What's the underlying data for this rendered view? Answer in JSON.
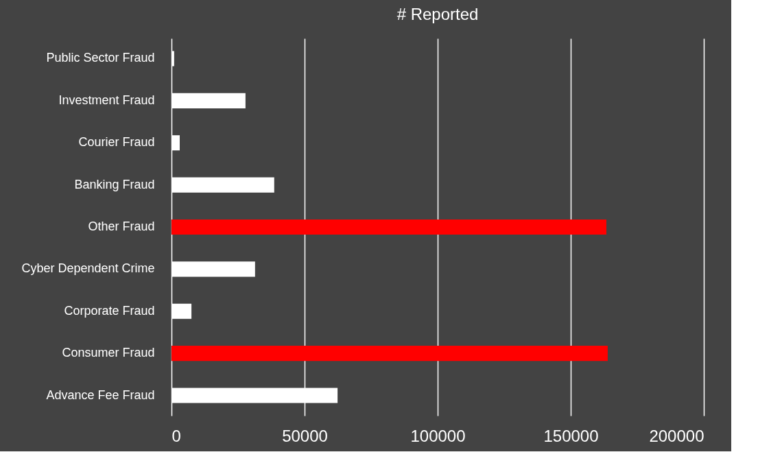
{
  "chart_data": {
    "type": "bar",
    "title": "# Reported",
    "orientation": "horizontal",
    "categories": [
      "Public Sector Fraud",
      "Investment Fraud",
      "Courier Fraud",
      "Banking Fraud",
      "Other Fraud",
      "Cyber Dependent Crime",
      "Corporate Fraud",
      "Consumer Fraud",
      "Advance Fee Fraud"
    ],
    "values": [
      1000,
      27800,
      3100,
      38600,
      163400,
      31400,
      7500,
      163900,
      62400
    ],
    "colors": [
      "#ffffff",
      "#ffffff",
      "#ffffff",
      "#ffffff",
      "#ff0000",
      "#ffffff",
      "#ffffff",
      "#ff0000",
      "#ffffff"
    ],
    "xlim": [
      0,
      200000
    ],
    "xticks": [
      0,
      50000,
      100000,
      150000,
      200000
    ],
    "grid": "x"
  }
}
